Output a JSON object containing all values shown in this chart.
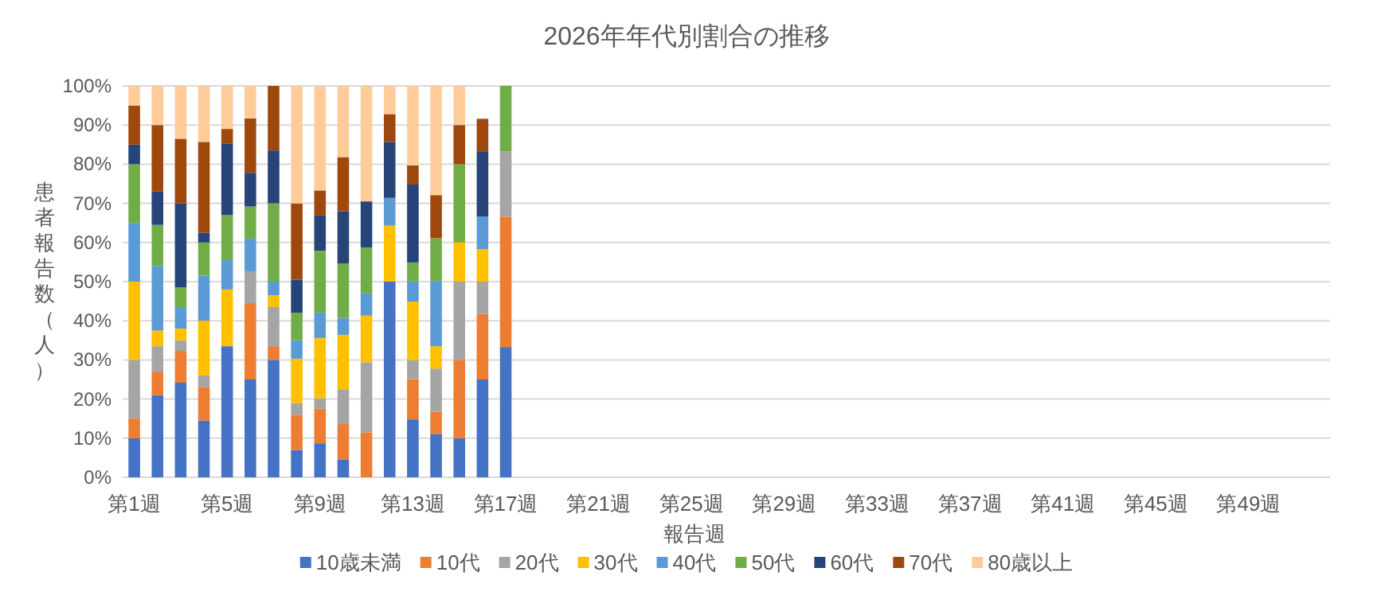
{
  "chart_data": {
    "type": "bar",
    "stacked": true,
    "title": "2026年年代別割合の推移",
    "xlabel": "報告週",
    "ylabel": "患者報告数（人）",
    "categories": [
      "第1週",
      null,
      null,
      null,
      "第5週",
      null,
      null,
      null,
      "第9週",
      null,
      null,
      null,
      "第13週",
      null,
      null,
      null,
      "第17週",
      null,
      null,
      null,
      "第21週",
      null,
      null,
      null,
      "第25週",
      null,
      null,
      null,
      "第29週",
      null,
      null,
      null,
      "第33週",
      null,
      null,
      null,
      "第37週",
      null,
      null,
      null,
      "第41週",
      null,
      null,
      null,
      "第45週",
      null,
      null,
      null,
      "第49週",
      null,
      null,
      null
    ],
    "ylim": [
      0,
      100
    ],
    "yticks": [
      {
        "value": 0,
        "label": "0%"
      },
      {
        "value": 10,
        "label": "10%"
      },
      {
        "value": 20,
        "label": "20%"
      },
      {
        "value": 30,
        "label": "30%"
      },
      {
        "value": 40,
        "label": "40%"
      },
      {
        "value": 50,
        "label": "50%"
      },
      {
        "value": 60,
        "label": "60%"
      },
      {
        "value": 70,
        "label": "70%"
      },
      {
        "value": 80,
        "label": "80%"
      },
      {
        "value": 90,
        "label": "90%"
      },
      {
        "value": 100,
        "label": "100%"
      }
    ],
    "grid": "y",
    "legend": "bottom",
    "series": [
      {
        "name": "10歳未満",
        "color": "#4472c4",
        "values": [
          10,
          21,
          24.2,
          14.5,
          33.5,
          25,
          30,
          7,
          8.7,
          4.6,
          0,
          50,
          14.8,
          11.1,
          10,
          25,
          33.3,
          null,
          null,
          null,
          null,
          null,
          null,
          null,
          null,
          null,
          null,
          null,
          null,
          null,
          null,
          null,
          null,
          null,
          null,
          null,
          null,
          null,
          null,
          null,
          null,
          null,
          null,
          null,
          null,
          null,
          null,
          null,
          null,
          null,
          null,
          null
        ]
      },
      {
        "name": "10代",
        "color": "#ed7d31",
        "values": [
          5,
          6,
          8.1,
          8.5,
          0,
          19.5,
          3.5,
          9,
          8.9,
          9,
          11.5,
          0,
          10.3,
          5.7,
          20,
          16.7,
          33.3,
          null,
          null,
          null,
          null,
          null,
          null,
          null,
          null,
          null,
          null,
          null,
          null,
          null,
          null,
          null,
          null,
          null,
          null,
          null,
          null,
          null,
          null,
          null,
          null,
          null,
          null,
          null,
          null,
          null,
          null,
          null,
          null,
          null,
          null,
          null
        ]
      },
      {
        "name": "20代",
        "color": "#a5a5a5",
        "values": [
          15,
          6.5,
          2.7,
          3,
          0,
          8,
          10,
          3,
          2.6,
          8.9,
          17.9,
          0,
          4.8,
          11,
          20,
          8.3,
          16.7,
          null,
          null,
          null,
          null,
          null,
          null,
          null,
          null,
          null,
          null,
          null,
          null,
          null,
          null,
          null,
          null,
          null,
          null,
          null,
          null,
          null,
          null,
          null,
          null,
          null,
          null,
          null,
          null,
          null,
          null,
          null,
          null,
          null,
          null,
          null
        ]
      },
      {
        "name": "30代",
        "color": "#ffc000",
        "values": [
          20,
          4,
          3,
          14,
          14.5,
          0,
          3,
          11.3,
          15.4,
          13.9,
          11.9,
          14.3,
          15,
          5.7,
          10,
          8.3,
          0,
          null,
          null,
          null,
          null,
          null,
          null,
          null,
          null,
          null,
          null,
          null,
          null,
          null,
          null,
          null,
          null,
          null,
          null,
          null,
          null,
          null,
          null,
          null,
          null,
          null,
          null,
          null,
          null,
          null,
          null,
          null,
          null,
          null,
          null,
          null
        ]
      },
      {
        "name": "40代",
        "color": "#5b9bd5",
        "values": [
          15,
          16.5,
          5.3,
          11.5,
          7.5,
          8.5,
          3.5,
          4.7,
          6.5,
          4.4,
          5.7,
          7.1,
          5.2,
          16.6,
          0,
          8.3,
          0,
          null,
          null,
          null,
          null,
          null,
          null,
          null,
          null,
          null,
          null,
          null,
          null,
          null,
          null,
          null,
          null,
          null,
          null,
          null,
          null,
          null,
          null,
          null,
          null,
          null,
          null,
          null,
          null,
          null,
          null,
          null,
          null,
          null,
          null,
          null
        ]
      },
      {
        "name": "50代",
        "color": "#70ad47",
        "values": [
          15,
          10.5,
          5.2,
          8.5,
          11.5,
          8.2,
          20,
          7,
          15.8,
          13.8,
          11.7,
          0,
          4.8,
          11,
          20,
          0,
          16.7,
          null,
          null,
          null,
          null,
          null,
          null,
          null,
          null,
          null,
          null,
          null,
          null,
          null,
          null,
          null,
          null,
          null,
          null,
          null,
          null,
          null,
          null,
          null,
          null,
          null,
          null,
          null,
          null,
          null,
          null,
          null,
          null,
          null,
          null,
          null
        ]
      },
      {
        "name": "60代",
        "color": "#264478",
        "values": [
          5,
          8.5,
          21.5,
          2.5,
          18.3,
          8.6,
          13.5,
          8.5,
          9,
          13.4,
          11.8,
          14.3,
          19.9,
          0,
          0,
          16.7,
          0,
          null,
          null,
          null,
          null,
          null,
          null,
          null,
          null,
          null,
          null,
          null,
          null,
          null,
          null,
          null,
          null,
          null,
          null,
          null,
          null,
          null,
          null,
          null,
          null,
          null,
          null,
          null,
          null,
          null,
          null,
          null,
          null,
          null,
          null,
          null
        ]
      },
      {
        "name": "70代",
        "color": "#9e480e",
        "values": [
          10,
          17,
          16.5,
          23.2,
          3.7,
          13.9,
          16.5,
          19.5,
          6.4,
          13.8,
          0,
          7.1,
          4.9,
          11,
          10,
          8.3,
          0,
          null,
          null,
          null,
          null,
          null,
          null,
          null,
          null,
          null,
          null,
          null,
          null,
          null,
          null,
          null,
          null,
          null,
          null,
          null,
          null,
          null,
          null,
          null,
          null,
          null,
          null,
          null,
          null,
          null,
          null,
          null,
          null,
          null,
          null,
          null
        ]
      },
      {
        "name": "80歳以上",
        "color": "#ffcc99",
        "values": [
          5,
          10,
          13.5,
          14.3,
          11,
          8.3,
          0,
          30,
          26.7,
          18.2,
          29.5,
          7.2,
          20.2,
          27.9,
          10,
          0,
          0,
          null,
          null,
          null,
          null,
          null,
          null,
          null,
          null,
          null,
          null,
          null,
          null,
          null,
          null,
          null,
          null,
          null,
          null,
          null,
          null,
          null,
          null,
          null,
          null,
          null,
          null,
          null,
          null,
          null,
          null,
          null,
          null,
          null,
          null,
          null
        ]
      }
    ]
  }
}
